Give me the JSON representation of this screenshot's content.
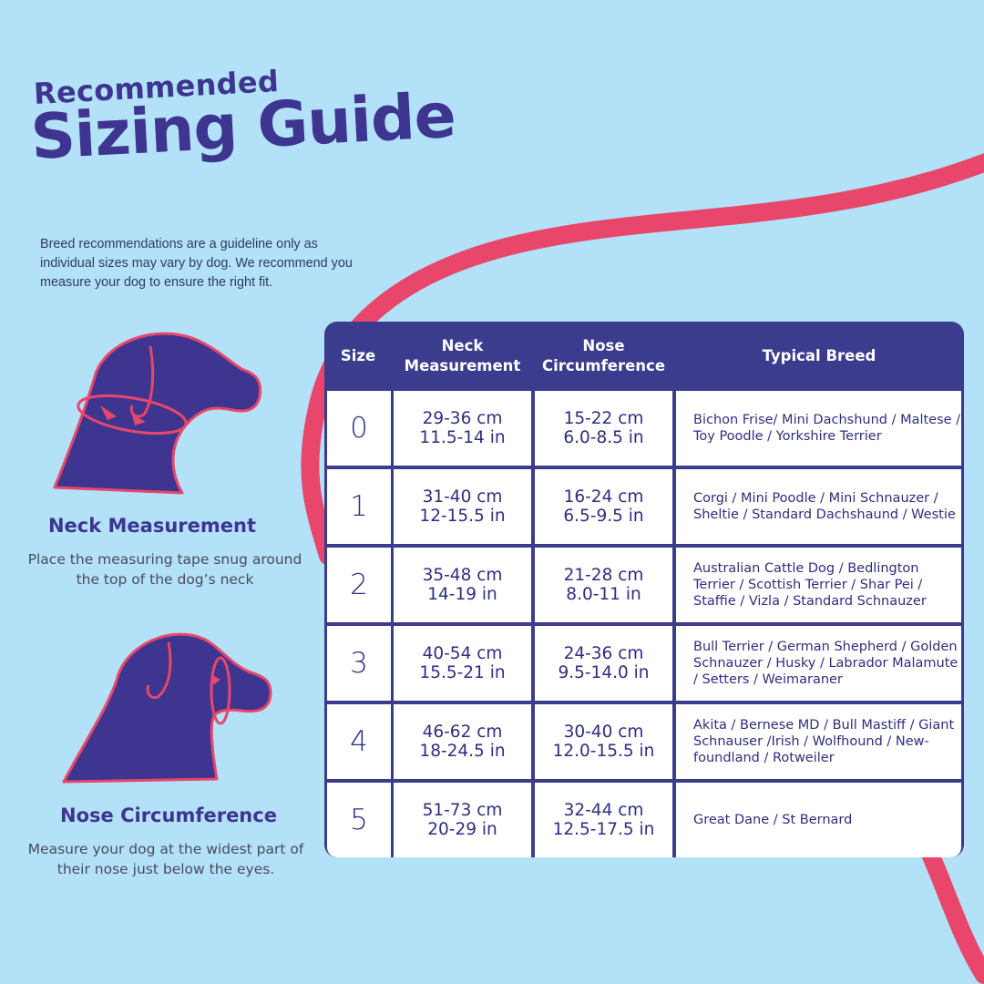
{
  "header": {
    "title_small": "Recommended",
    "title_big": "Sizing Guide",
    "intro": "Breed recommendations are a guideline only as individual sizes may vary by dog. We recommend you measure your dog to ensure the right fit."
  },
  "sections": [
    {
      "title": "Neck Measurement",
      "description": "Place the measuring tape snug around the top of the dog’s neck",
      "icon": "dog-neck-icon"
    },
    {
      "title": "Nose Circumference",
      "description": "Measure your dog at the widest part of their nose just below the eyes.",
      "icon": "dog-nose-icon"
    }
  ],
  "table": {
    "headers": {
      "size": "Size",
      "neck": "Neck\nMeasurement",
      "nose": "Nose\nCircumference",
      "breed": "Typical Breed"
    },
    "rows": [
      {
        "size": "0",
        "neck": "29-36 cm\n11.5-14 in",
        "nose": "15-22 cm\n6.0-8.5 in",
        "breed": "Bichon Frise/ Mini Dachshund / Maltese / Toy Poodle / Yorkshire Terrier"
      },
      {
        "size": "1",
        "neck": "31-40 cm\n12-15.5 in",
        "nose": "16-24 cm\n6.5-9.5 in",
        "breed": "Corgi / Mini Poodle / Mini Schnauzer / Sheltie / Standard Dachshaund / Westie"
      },
      {
        "size": "2",
        "neck": "35-48 cm\n14-19 in",
        "nose": "21-28 cm\n8.0-11 in",
        "breed": "Australian Cattle Dog / Bedlington Terrier / Scottish Terrier / Shar Pei / Staffie / Vizla / Standard Schnauzer"
      },
      {
        "size": "3",
        "neck": "40-54 cm\n15.5-21 in",
        "nose": "24-36 cm\n9.5-14.0 in",
        "breed": "Bull Terrier / German Shepherd / Golden Schnauzer / Husky / Labrador Malamute / Setters / Weimaraner"
      },
      {
        "size": "4",
        "neck": "46-62 cm\n18-24.5 in",
        "nose": "30-40 cm\n12.0-15.5 in",
        "breed": "Akita / Bernese MD / Bull Mastiff / Giant Schnauser /Irish / Wolfhound / New-foundland / Rotweiler"
      },
      {
        "size": "5",
        "neck": "51-73 cm\n20-29 in",
        "nose": "32-44 cm\n12.5-17.5 in",
        "breed": "Great Dane / St Bernard"
      }
    ]
  },
  "colors": {
    "background": "#b3e1f8",
    "navy": "#3b3c8e",
    "accent_pink": "#e8466a",
    "text_dark": "#2d2f7e"
  }
}
